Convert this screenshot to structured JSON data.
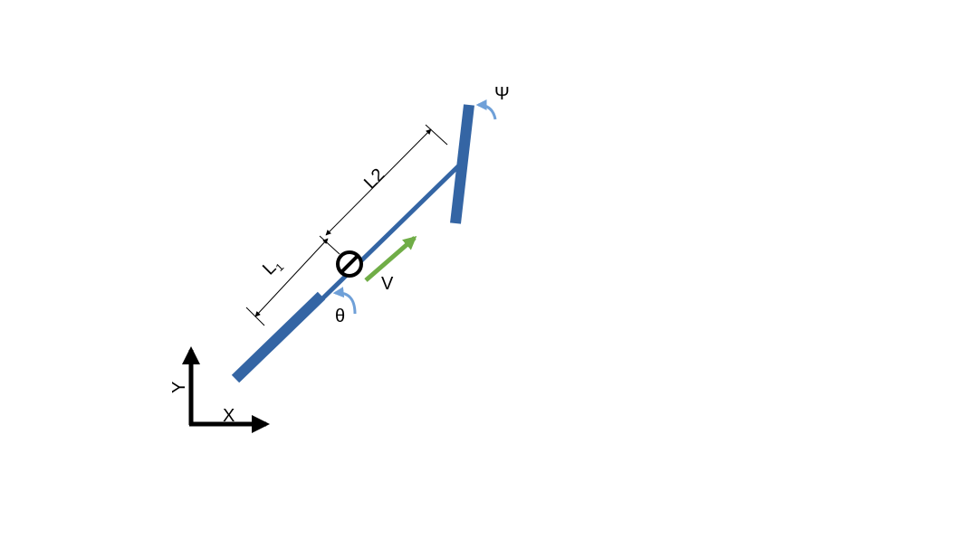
{
  "labels": {
    "psi": "Ψ",
    "l2": "L2",
    "l1_main": "L",
    "l1_sub": "1",
    "velocity": "V",
    "theta": "θ",
    "y_axis": "Y",
    "x_axis": "X"
  },
  "colors": {
    "body": "#3465a4",
    "velocity_arrow": "#70ad47",
    "angle_arrow": "#6fa0d8",
    "lines": "#000000"
  }
}
